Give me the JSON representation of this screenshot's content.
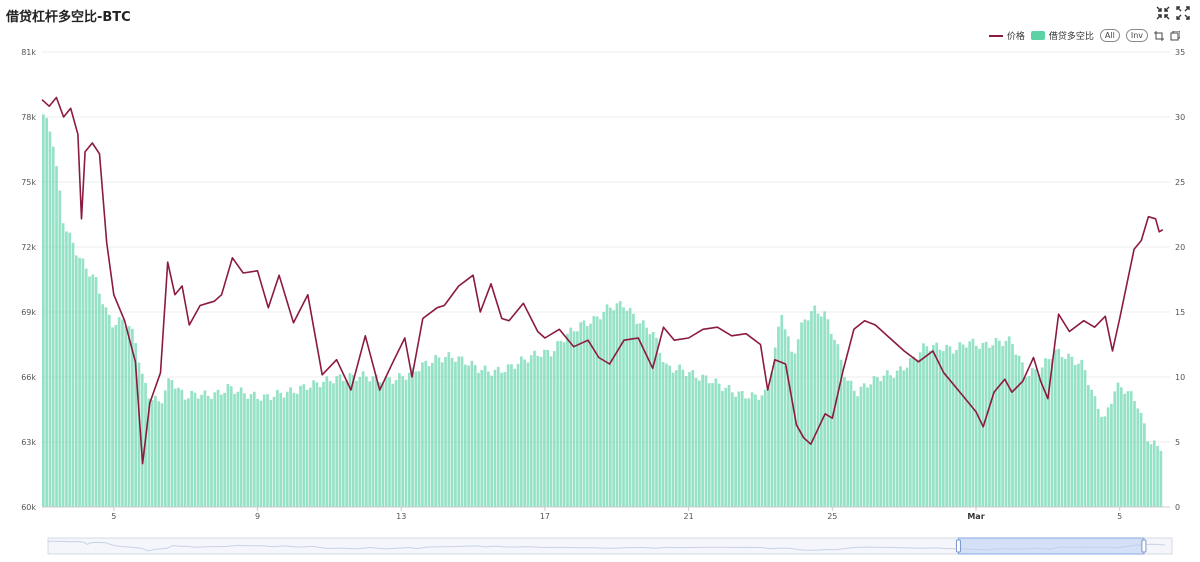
{
  "title": "借贷杠杆多空比-BTC",
  "toolbar": {
    "collapse_icon": "collapse-arrows-icon",
    "expand_icon": "expand-arrows-icon"
  },
  "legend": {
    "price_label": "价格",
    "ratio_label": "借贷多空比",
    "all_label": "All",
    "inv_label": "Inv"
  },
  "colors": {
    "price_line": "#8b1a3f",
    "ratio_bars": "#5ed2a7",
    "grid": "#eeeeee"
  },
  "chart_data": {
    "type": "bar+line",
    "x_tick_labels": [
      "5",
      "9",
      "13",
      "17",
      "21",
      "25",
      "Mar",
      "5"
    ],
    "left_axis": {
      "ticks": [
        "60k",
        "63k",
        "66k",
        "69k",
        "72k",
        "75k",
        "78k",
        "81k"
      ],
      "ylim": [
        60000,
        81000
      ]
    },
    "right_axis": {
      "ticks": [
        "0",
        "5",
        "10",
        "15",
        "20",
        "25",
        "30",
        "35"
      ],
      "ylim": [
        0,
        35
      ]
    },
    "series": [
      {
        "name": "价格",
        "type": "line",
        "axis": "left",
        "x_days": [
          3.0,
          3.2,
          3.4,
          3.6,
          3.8,
          4.0,
          4.1,
          4.2,
          4.4,
          4.6,
          4.8,
          5.0,
          5.3,
          5.6,
          5.8,
          6.0,
          6.3,
          6.5,
          6.7,
          6.9,
          7.1,
          7.4,
          7.6,
          7.8,
          8.0,
          8.3,
          8.6,
          9.0,
          9.3,
          9.6,
          9.8,
          10.0,
          10.4,
          10.8,
          11.2,
          11.6,
          12.0,
          12.4,
          12.8,
          13.1,
          13.3,
          13.6,
          14.0,
          14.2,
          14.6,
          15.0,
          15.2,
          15.5,
          15.8,
          16.0,
          16.4,
          16.8,
          17.0,
          17.4,
          17.8,
          18.2,
          18.5,
          18.8,
          19.2,
          19.6,
          20.0,
          20.3,
          20.6,
          21.0,
          21.4,
          21.8,
          22.2,
          22.6,
          23.0,
          23.2,
          23.4,
          23.7,
          24.0,
          24.2,
          24.4,
          24.8,
          25.0,
          25.3,
          25.6,
          25.9,
          26.2,
          26.6,
          27.0,
          27.4,
          27.8,
          28.1,
          28.3,
          28.6,
          29.0,
          29.2,
          29.5,
          29.8,
          30.0,
          30.3,
          30.6,
          30.8,
          31.0,
          31.3,
          31.6,
          32.0,
          32.3,
          32.6,
          32.8,
          33.0,
          33.2,
          33.4,
          33.6,
          33.8,
          34.0,
          34.1,
          34.2
        ],
        "values": [
          78800,
          78500,
          78900,
          78000,
          78400,
          77200,
          73300,
          76400,
          76800,
          76300,
          72200,
          69800,
          68600,
          66700,
          62000,
          64800,
          66200,
          71300,
          69800,
          70200,
          68400,
          69300,
          69400,
          69500,
          69800,
          71500,
          70800,
          70900,
          69200,
          70700,
          69600,
          68500,
          69800,
          66100,
          66800,
          65400,
          67900,
          65400,
          66800,
          67800,
          66000,
          68700,
          69200,
          69300,
          70200,
          70700,
          69000,
          70300,
          68700,
          68600,
          69400,
          68100,
          67800,
          68200,
          67400,
          67700,
          66900,
          66600,
          67700,
          67800,
          66400,
          68300,
          67700,
          67800,
          68200,
          68300,
          67900,
          68000,
          67500,
          65400,
          66800,
          66600,
          63800,
          63200,
          62900,
          64300,
          64100,
          66300,
          68200,
          68600,
          68400,
          67800,
          67200,
          66700,
          67200,
          66200,
          65800,
          65200,
          64400,
          63700,
          65300,
          65900,
          65300,
          65800,
          66900,
          65800,
          65000,
          68900,
          68100,
          68600,
          68300,
          68800,
          67200,
          68700,
          70300,
          71900,
          72300,
          73400,
          73300,
          72700,
          72800
        ]
      },
      {
        "name": "借贷多空比",
        "type": "bar",
        "axis": "right",
        "x_days": [
          3.0,
          3.3,
          3.6,
          3.9,
          4.2,
          4.5,
          4.8,
          5.0,
          5.3,
          5.6,
          5.8,
          6.0,
          6.3,
          6.6,
          6.8,
          7.0,
          7.3,
          7.6,
          7.9,
          8.2,
          8.5,
          8.8,
          9.2,
          9.6,
          10.0,
          10.4,
          10.8,
          11.2,
          11.6,
          12.0,
          12.4,
          12.8,
          13.2,
          13.6,
          14.0,
          14.4,
          14.8,
          15.2,
          15.6,
          16.0,
          16.4,
          16.8,
          17.2,
          17.6,
          18.0,
          18.4,
          18.8,
          19.2,
          19.6,
          20.0,
          20.4,
          20.8,
          21.2,
          21.6,
          22.0,
          22.4,
          22.8,
          23.2,
          23.6,
          23.9,
          24.2,
          24.5,
          24.8,
          25.1,
          25.4,
          25.7,
          26.0,
          26.4,
          26.8,
          27.2,
          27.6,
          28.0,
          28.4,
          28.8,
          29.2,
          29.6,
          30.0,
          30.4,
          30.8,
          31.2,
          31.6,
          32.0,
          32.3,
          32.6,
          32.9,
          33.2,
          33.5,
          33.8,
          34.1,
          34.2
        ],
        "values": [
          30.5,
          28.5,
          22.0,
          20.0,
          18.5,
          17.5,
          15.0,
          14.0,
          14.5,
          13.0,
          10.0,
          8.5,
          8.0,
          10.0,
          9.0,
          8.5,
          8.7,
          8.6,
          8.7,
          9.2,
          8.9,
          8.6,
          8.4,
          8.7,
          8.9,
          9.3,
          9.6,
          9.9,
          10.0,
          10.1,
          9.8,
          9.8,
          10.2,
          10.9,
          11.4,
          11.6,
          11.2,
          10.6,
          10.4,
          10.7,
          11.3,
          11.8,
          11.9,
          13.2,
          14.0,
          14.4,
          15.4,
          15.6,
          14.3,
          13.5,
          10.7,
          10.6,
          10.1,
          9.8,
          9.2,
          8.7,
          8.5,
          8.7,
          15.0,
          11.5,
          14.3,
          15.2,
          14.8,
          12.8,
          9.8,
          8.8,
          9.5,
          10.1,
          10.3,
          11.2,
          12.4,
          12.3,
          12.1,
          12.7,
          12.4,
          12.7,
          12.8,
          10.2,
          10.6,
          12.0,
          11.5,
          10.9,
          8.3,
          6.7,
          9.3,
          9.0,
          8.0,
          5.2,
          4.5,
          4.8
        ]
      }
    ],
    "xlim_days": [
      3.0,
      34.4
    ],
    "navigator": {
      "selected_range": [
        0.81,
        0.975
      ]
    }
  }
}
